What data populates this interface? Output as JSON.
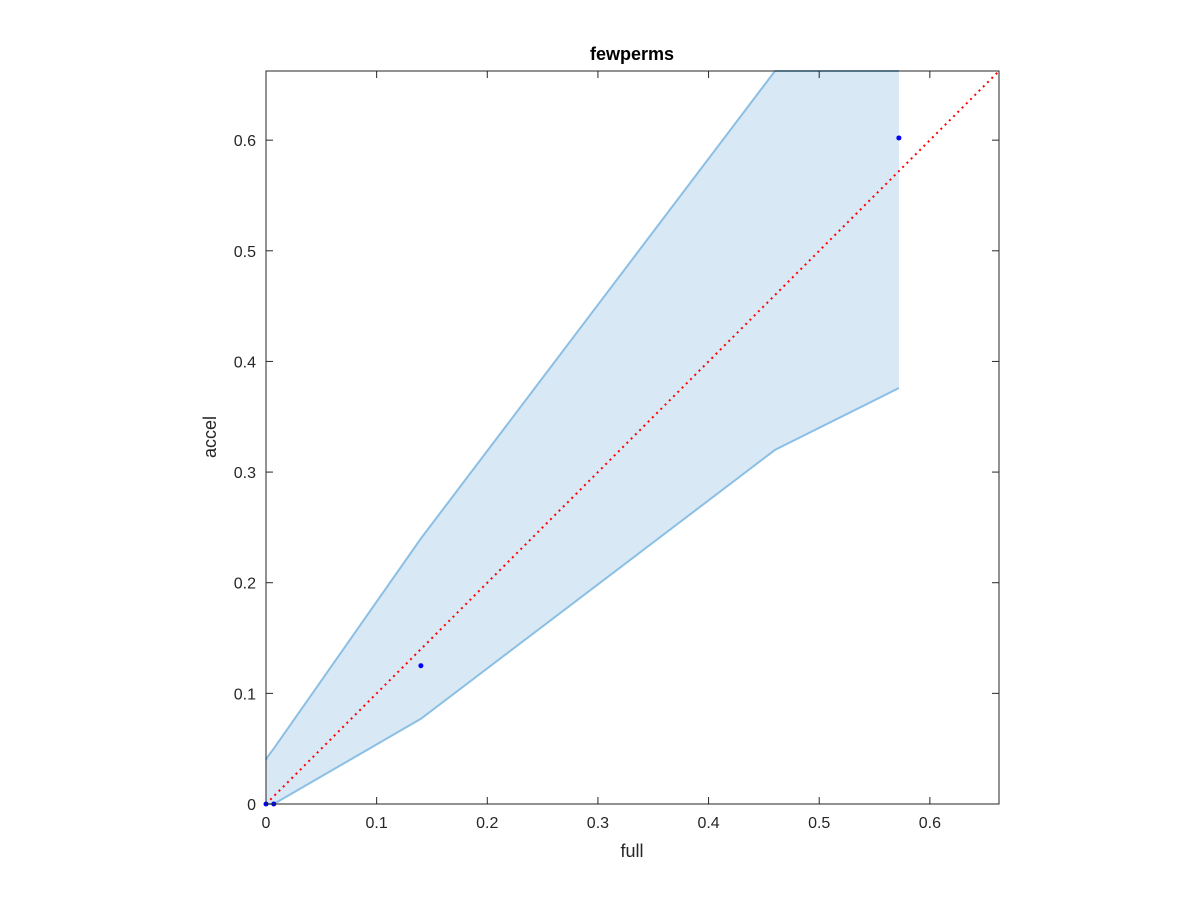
{
  "chart_data": {
    "type": "scatter",
    "title": "fewperms",
    "xlabel": "full",
    "ylabel": "accel",
    "xlim": [
      0,
      0.6625
    ],
    "ylim": [
      0,
      0.6625
    ],
    "xticks": [
      "0",
      "0.1",
      "0.2",
      "0.3",
      "0.4",
      "0.5",
      "0.6"
    ],
    "yticks": [
      "0",
      "0.1",
      "0.2",
      "0.3",
      "0.4",
      "0.5",
      "0.6"
    ],
    "grid": false,
    "band": {
      "x": [
        0,
        0.001,
        0.007,
        0.14,
        0.46,
        0.572
      ],
      "upper": [
        0.04,
        0.042,
        0.05,
        0.24,
        0.6625,
        0.6625
      ],
      "lower": [
        0,
        0,
        0,
        0.077,
        0.32,
        0.376
      ],
      "fill_color": "#d9e8f5",
      "line_color": "#8bbfe4"
    },
    "points": {
      "x": [
        0,
        0.007,
        0.14,
        0.572
      ],
      "y": [
        0,
        0,
        0.125,
        0.602
      ],
      "color": "#0000ff"
    },
    "reference_line": {
      "x": [
        0,
        0.6625
      ],
      "y": [
        0,
        0.6625
      ],
      "style": "dotted",
      "color": "#ff0000"
    }
  }
}
